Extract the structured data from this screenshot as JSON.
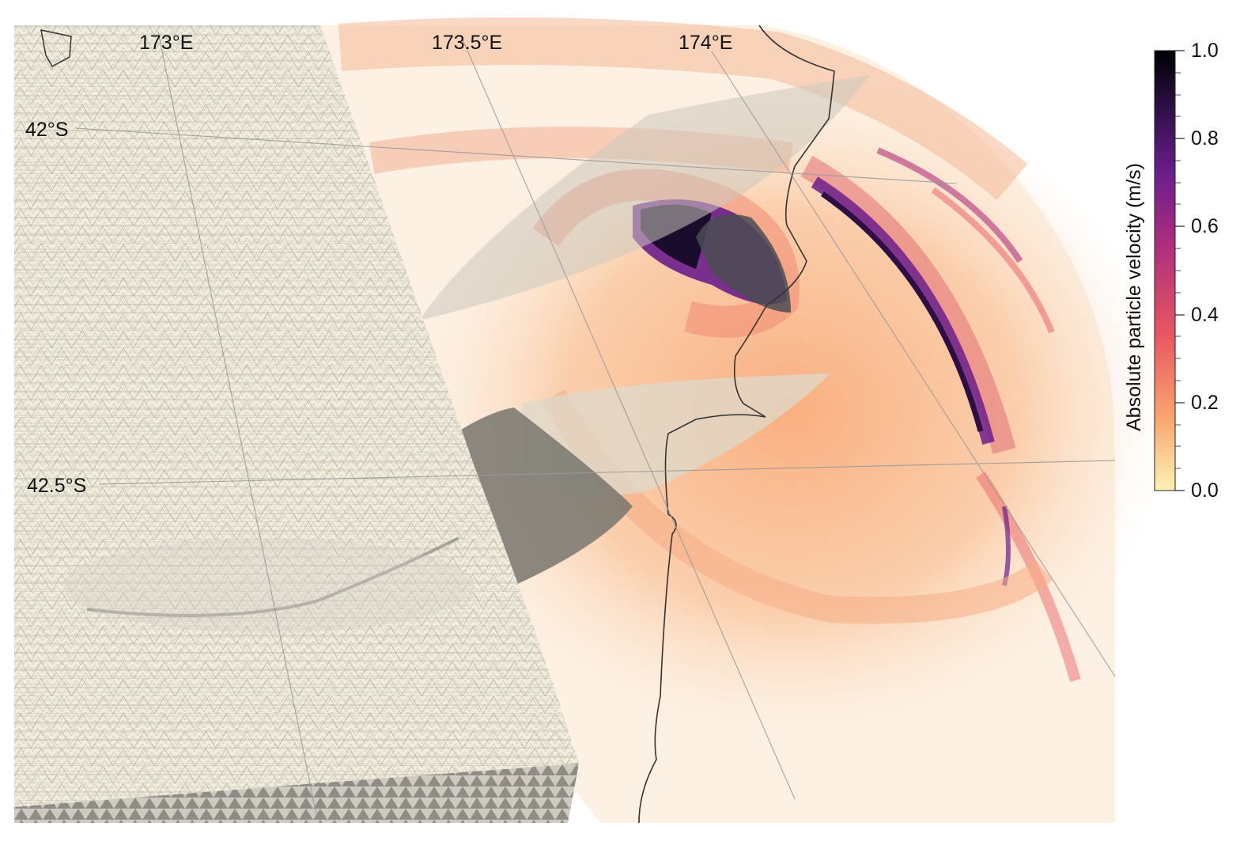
{
  "map": {
    "longitude_labels": [
      "173°E",
      "173.5°E",
      "174°E"
    ],
    "latitude_labels": [
      "42°S",
      "42.5°S"
    ],
    "layers": [
      "mesh-domain",
      "fault-surfaces",
      "velocity-wavefield",
      "coastline",
      "graticule"
    ]
  },
  "colorbar": {
    "title": "Absolute particle velocity (m/s)",
    "tick_labels": [
      "1.0",
      "0.8",
      "0.6",
      "0.4",
      "0.2",
      "0.0"
    ],
    "min": 0.0,
    "max": 1.0,
    "colormap": "magma-reversed",
    "colors": [
      "#fcf2b3",
      "#f9a36e",
      "#e9585f",
      "#b12f7c",
      "#6b1e8c",
      "#2d0f46",
      "#000004"
    ]
  }
}
